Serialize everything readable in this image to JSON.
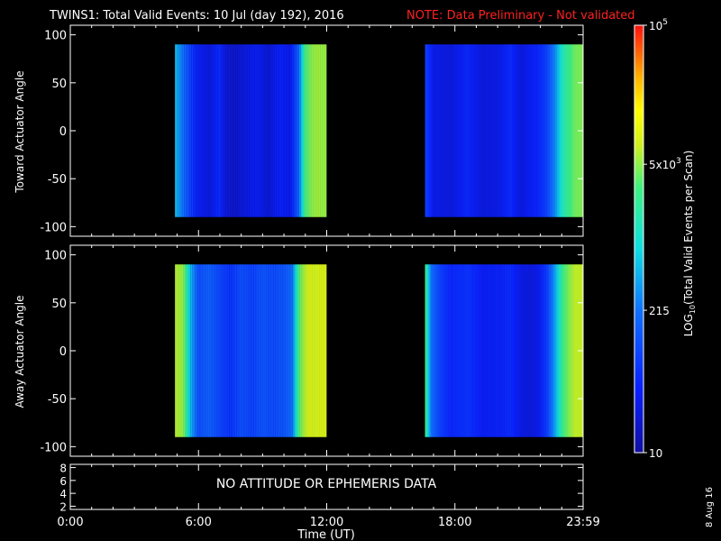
{
  "title": {
    "main": "TWINS1: Total Valid Events: 10 Jul (day 192), 2016",
    "note": "NOTE: Data Preliminary - Not validated",
    "note_color": "#ff2020"
  },
  "panels": {
    "top_ylabel": "Toward Actuator Angle",
    "bottom_ylabel": "Away Actuator Angle",
    "ephemeris_message": "NO ATTITUDE OR EPHEMERIS DATA"
  },
  "xaxis": {
    "label": "Time (UT)",
    "ticks": [
      "0:00",
      "6:00",
      "12:00",
      "18:00",
      "23:59"
    ]
  },
  "colorbar": {
    "label_prefix": "LOG",
    "label_sub": "10",
    "label_suffix": "(Total Valid  Events per Scan)",
    "ticks": [
      {
        "mantissa": "10",
        "exp": "5"
      },
      {
        "mantissa": "5x10",
        "exp": "3"
      },
      {
        "mantissa": "215",
        "exp": ""
      },
      {
        "mantissa": "10",
        "exp": ""
      }
    ]
  },
  "side_date": "8 Aug 16",
  "chart_data": [
    {
      "type": "heatmap",
      "title": "TWINS1: Total Valid Events: 10 Jul (day 192), 2016",
      "xlabel": "Time (UT)",
      "ylabel": "Toward Actuator Angle",
      "xlim": [
        0,
        24
      ],
      "ylim": [
        -110,
        110
      ],
      "yticks": [
        100,
        50,
        0,
        -50,
        -100
      ],
      "data_y_range": [
        -90,
        90
      ],
      "colorbar_log_range": [
        10,
        100000
      ],
      "intervals": [
        {
          "start": 4.9,
          "end": 12.0,
          "profile": [
            [
              4.9,
              600
            ],
            [
              5.5,
              110
            ],
            [
              5.9,
              40
            ],
            [
              6.5,
              25
            ],
            [
              7.0,
              50
            ],
            [
              7.3,
              22
            ],
            [
              7.8,
              20
            ],
            [
              8.3,
              28
            ],
            [
              8.8,
              35
            ],
            [
              9.3,
              22
            ],
            [
              9.8,
              40
            ],
            [
              10.3,
              30
            ],
            [
              10.7,
              160
            ],
            [
              11.0,
              3000
            ],
            [
              11.4,
              5500
            ],
            [
              12.0,
              5500
            ]
          ]
        },
        {
          "start": 16.6,
          "end": 24.0,
          "profile": [
            [
              16.6,
              90
            ],
            [
              17.0,
              30
            ],
            [
              17.8,
              25
            ],
            [
              18.6,
              45
            ],
            [
              19.3,
              25
            ],
            [
              20.1,
              30
            ],
            [
              20.6,
              50
            ],
            [
              21.1,
              25
            ],
            [
              21.5,
              35
            ],
            [
              21.9,
              45
            ],
            [
              22.3,
              80
            ],
            [
              22.7,
              300
            ],
            [
              23.1,
              1600
            ],
            [
              23.6,
              4000
            ],
            [
              24.0,
              4800
            ]
          ]
        }
      ]
    },
    {
      "type": "heatmap",
      "xlabel": "Time (UT)",
      "ylabel": "Away Actuator Angle",
      "xlim": [
        0,
        24
      ],
      "ylim": [
        -110,
        110
      ],
      "yticks": [
        100,
        50,
        0,
        -50,
        -100
      ],
      "data_y_range": [
        -90,
        90
      ],
      "colorbar_log_range": [
        10,
        100000
      ],
      "intervals": [
        {
          "start": 4.9,
          "end": 12.0,
          "profile": [
            [
              4.9,
              7000
            ],
            [
              5.3,
              5000
            ],
            [
              5.6,
              600
            ],
            [
              6.0,
              110
            ],
            [
              6.5,
              150
            ],
            [
              7.0,
              90
            ],
            [
              7.5,
              60
            ],
            [
              8.0,
              110
            ],
            [
              8.5,
              80
            ],
            [
              9.0,
              120
            ],
            [
              9.5,
              100
            ],
            [
              10.0,
              120
            ],
            [
              10.4,
              200
            ],
            [
              10.7,
              3000
            ],
            [
              11.1,
              9000
            ],
            [
              12.0,
              9000
            ]
          ]
        },
        {
          "start": 16.6,
          "end": 24.0,
          "profile": [
            [
              16.6,
              3000
            ],
            [
              16.9,
              200
            ],
            [
              17.3,
              80
            ],
            [
              17.8,
              45
            ],
            [
              18.6,
              60
            ],
            [
              19.3,
              35
            ],
            [
              20.1,
              40
            ],
            [
              20.6,
              50
            ],
            [
              21.1,
              28
            ],
            [
              21.5,
              25
            ],
            [
              21.9,
              30
            ],
            [
              22.3,
              70
            ],
            [
              22.7,
              400
            ],
            [
              23.1,
              3000
            ],
            [
              23.6,
              7000
            ],
            [
              24.0,
              8000
            ]
          ]
        }
      ]
    },
    {
      "type": "line",
      "ylabel": "",
      "xlim": [
        0,
        24
      ],
      "ylim": [
        1.5,
        8.5
      ],
      "yticks": [
        8,
        6,
        4,
        2
      ],
      "series": []
    }
  ]
}
